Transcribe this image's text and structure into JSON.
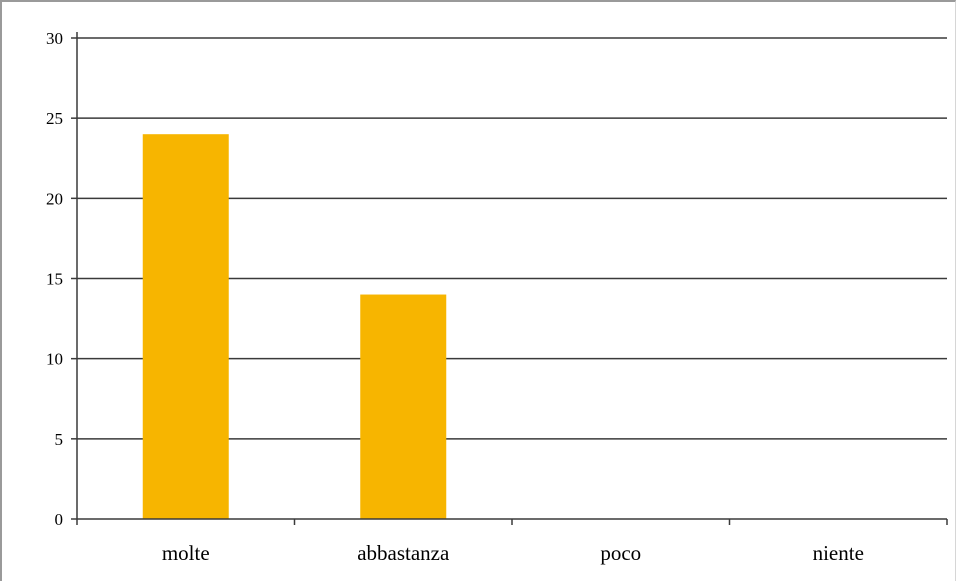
{
  "chart_data": {
    "type": "bar",
    "categories": [
      "molte",
      "abbastanza",
      "poco",
      "niente"
    ],
    "values": [
      24,
      14,
      0,
      0
    ],
    "ylim": [
      0,
      30
    ],
    "yticks": [
      0,
      5,
      10,
      15,
      20,
      25,
      30
    ],
    "ytick_labels": [
      "0",
      "5",
      "10",
      "15",
      "20",
      "25",
      "30"
    ],
    "grid": true,
    "legend": "none",
    "bar_color": "#F7B500",
    "title": "",
    "xlabel": "",
    "ylabel": ""
  }
}
